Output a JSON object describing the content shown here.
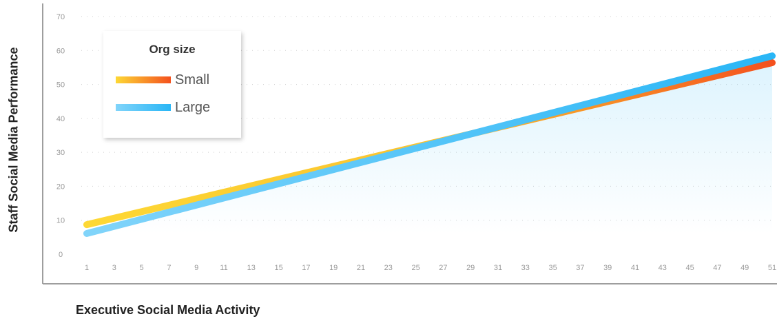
{
  "chart_data": {
    "type": "line",
    "xlabel": "Executive Social Media Activity",
    "ylabel": "Staff Social Media Performance",
    "xlim": [
      1,
      51
    ],
    "ylim": [
      0,
      70
    ],
    "x_ticks": [
      1,
      3,
      5,
      7,
      9,
      11,
      13,
      15,
      17,
      19,
      21,
      23,
      25,
      27,
      29,
      31,
      33,
      35,
      37,
      39,
      41,
      43,
      45,
      47,
      49,
      51
    ],
    "y_ticks": [
      0,
      10,
      20,
      30,
      40,
      50,
      60,
      70
    ],
    "grid": "horizontal dotted",
    "legend": {
      "title": "Org size",
      "placement": "top-left",
      "items": [
        {
          "label": "Small",
          "color_start": "#FDD835",
          "color_end": "#F4511E"
        },
        {
          "label": "Large",
          "color_start": "#81D4FA",
          "color_end": "#29B6F6"
        }
      ]
    },
    "series": [
      {
        "name": "Small",
        "x": [
          1,
          51
        ],
        "y": [
          8.7,
          56.4
        ]
      },
      {
        "name": "Large",
        "x": [
          1,
          51
        ],
        "y": [
          6.1,
          58.4
        ]
      }
    ]
  }
}
